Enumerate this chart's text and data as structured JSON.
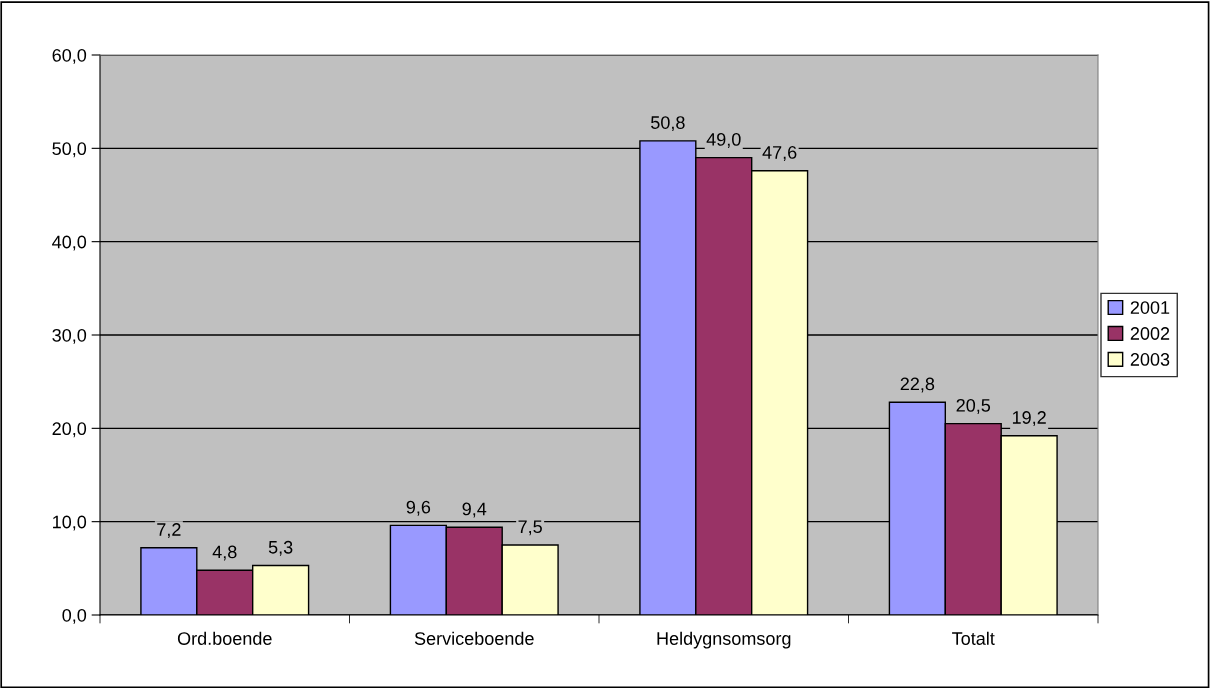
{
  "chart_data": {
    "type": "bar",
    "categories": [
      "Ord.boende",
      "Serviceboende",
      "Heldygnsomsorg",
      "Totalt"
    ],
    "series": [
      {
        "name": "2001",
        "color": "#9999ff",
        "values": [
          7.2,
          9.6,
          50.8,
          22.8
        ],
        "value_labels": [
          "7,2",
          "9,6",
          "50,8",
          "22,8"
        ]
      },
      {
        "name": "2002",
        "color": "#993366",
        "values": [
          4.8,
          9.4,
          49.0,
          20.5
        ],
        "value_labels": [
          "4,8",
          "9,4",
          "49,0",
          "20,5"
        ]
      },
      {
        "name": "2003",
        "color": "#ffffcc",
        "values": [
          5.3,
          7.5,
          47.6,
          19.2
        ],
        "value_labels": [
          "5,3",
          "7,5",
          "47,6",
          "19,2"
        ]
      }
    ],
    "ylim": [
      0,
      60
    ],
    "yticks": [
      {
        "value": 0,
        "label": "0,0"
      },
      {
        "value": 10,
        "label": "10,0"
      },
      {
        "value": 20,
        "label": "20,0"
      },
      {
        "value": 30,
        "label": "30,0"
      },
      {
        "value": 40,
        "label": "40,0"
      },
      {
        "value": 50,
        "label": "50,0"
      },
      {
        "value": 60,
        "label": "60,0"
      }
    ],
    "grid": "y",
    "legend": "right"
  }
}
